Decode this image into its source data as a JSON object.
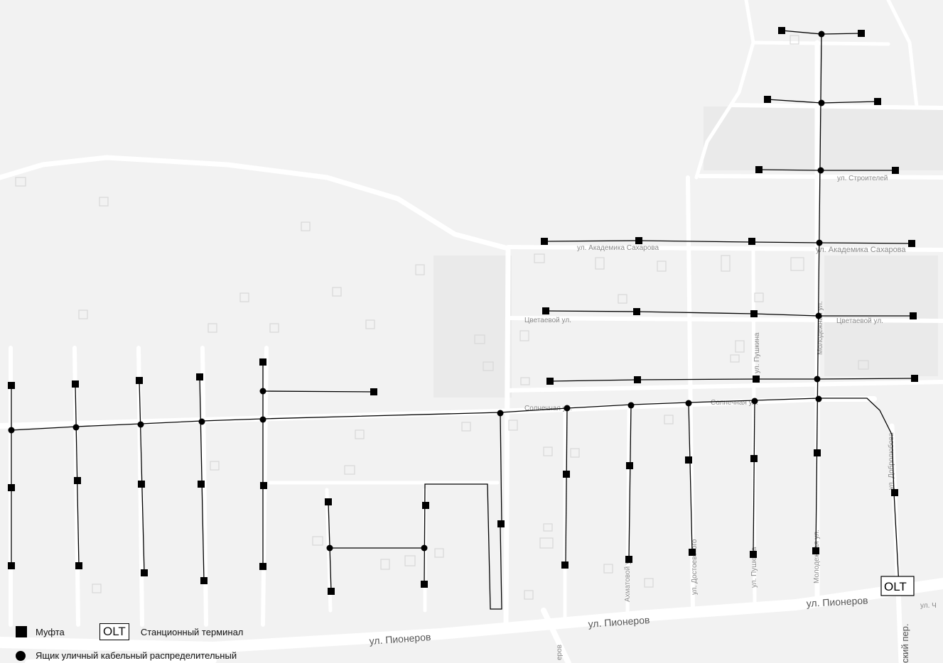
{
  "map": {
    "streets": [
      {
        "id": "pionerov-1",
        "label": "ул. Пионеров"
      },
      {
        "id": "pionerov-2",
        "label": "ул. Пионеров"
      },
      {
        "id": "pionerov-3",
        "label": "ул. Пионеров"
      },
      {
        "id": "stroiteley",
        "label": "ул. Строителей"
      },
      {
        "id": "saharova-1",
        "label": "ул. Академика Сахарова"
      },
      {
        "id": "saharova-2",
        "label": "ул. Академика Сахарова"
      },
      {
        "id": "cvetaevoy-1",
        "label": "Цветаевой ул."
      },
      {
        "id": "cvetaevoy-2",
        "label": "Цветаевой ул."
      },
      {
        "id": "solnechnaya-1",
        "label": "Солнечная ул."
      },
      {
        "id": "solnechnaya-2",
        "label": "Солнечная ул."
      },
      {
        "id": "pushkina-1",
        "label": "ул. Пушкина"
      },
      {
        "id": "pushkina-2",
        "label": "ул. Пушкина"
      },
      {
        "id": "molodezhnaya-1",
        "label": "Молодежная ул."
      },
      {
        "id": "molodezhnaya-2",
        "label": "Молодежная ул."
      },
      {
        "id": "dostoevskogo",
        "label": "ул. Достоевского"
      },
      {
        "id": "ahmatovoy",
        "label": "Ахматовой ул."
      },
      {
        "id": "dobrolubova",
        "label": "ул. Добролюбова"
      },
      {
        "id": "ch",
        "label": "ул. Ч"
      },
      {
        "id": "per",
        "label": "ский пер."
      },
      {
        "id": "erov",
        "label": "еров"
      }
    ],
    "olt_label": "OLT"
  },
  "legend": {
    "mufta": "Муфта",
    "olt_box": "OLT",
    "olt_text": "Станционный терминал",
    "cabinet": "Ящик уличный кабельный распределительный"
  },
  "colors": {
    "background": "#f2f2f2",
    "road": "#ffffff",
    "network": "#000000"
  }
}
